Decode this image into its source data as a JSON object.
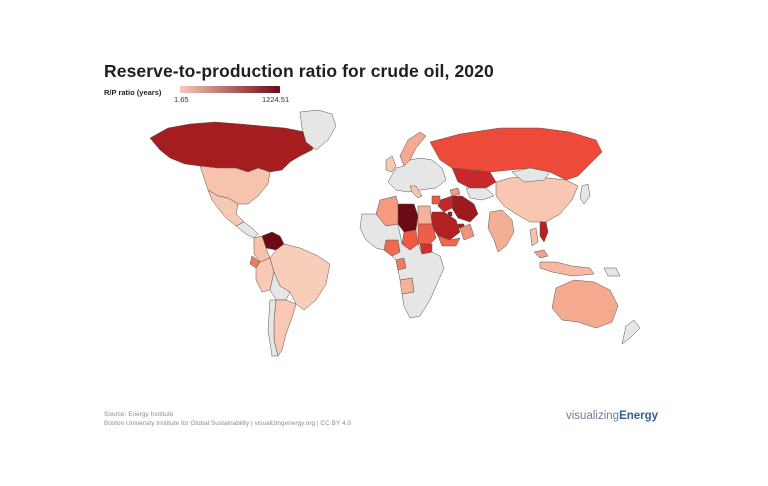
{
  "title": "Reserve-to-production ratio for crude oil, 2020",
  "legend": {
    "label": "R/P ratio (years)",
    "min": "1.65",
    "max": "1224.51",
    "color_low": "#f7c9b5",
    "color_high": "#6b0a13"
  },
  "colors": {
    "no_data": "#e6e6e6",
    "border": "#555555"
  },
  "footer": {
    "source": "Source: Energy Institute",
    "credit": "Boston University Institute for Global Sustainability | visualizingenergy.org | CC BY 4.0",
    "brand_light": "visualizing",
    "brand_bold": "Energy"
  },
  "countries": [
    {
      "name": "Canada",
      "fill": "#a51d1f"
    },
    {
      "name": "Greenland",
      "fill": "#e6e6e6"
    },
    {
      "name": "United States",
      "fill": "#f8c3ad"
    },
    {
      "name": "Mexico",
      "fill": "#f7c9b5"
    },
    {
      "name": "Central America",
      "fill": "#e6e6e6"
    },
    {
      "name": "Venezuela",
      "fill": "#6b0a13"
    },
    {
      "name": "Colombia",
      "fill": "#f6c2ab"
    },
    {
      "name": "Ecuador",
      "fill": "#ee7a5c"
    },
    {
      "name": "Peru",
      "fill": "#f8c9b4"
    },
    {
      "name": "Brazil",
      "fill": "#f8cdb9"
    },
    {
      "name": "Bolivia",
      "fill": "#e6e6e6"
    },
    {
      "name": "Argentina",
      "fill": "#f8c8b3"
    },
    {
      "name": "Chile",
      "fill": "#e6e6e6"
    },
    {
      "name": "Norway",
      "fill": "#f4a990"
    },
    {
      "name": "United Kingdom",
      "fill": "#f8c8b3"
    },
    {
      "name": "Europe",
      "fill": "#e6e6e6"
    },
    {
      "name": "Italy",
      "fill": "#f7c3ac"
    },
    {
      "name": "Russia",
      "fill": "#ee4a3a"
    },
    {
      "name": "Kazakhstan",
      "fill": "#c7282b"
    },
    {
      "name": "Turkmenistan/Uzbekistan",
      "fill": "#e6e6e6"
    },
    {
      "name": "Azerbaijan",
      "fill": "#f29a7e"
    },
    {
      "name": "Iran",
      "fill": "#9e1a1e"
    },
    {
      "name": "Iraq",
      "fill": "#c0262a"
    },
    {
      "name": "Saudi Arabia",
      "fill": "#b32024"
    },
    {
      "name": "Kuwait",
      "fill": "#9b181c"
    },
    {
      "name": "UAE",
      "fill": "#a51c1f"
    },
    {
      "name": "Oman",
      "fill": "#f19377"
    },
    {
      "name": "Yemen",
      "fill": "#ed6a50"
    },
    {
      "name": "Syria",
      "fill": "#ea5a46"
    },
    {
      "name": "Algeria",
      "fill": "#f39a80"
    },
    {
      "name": "Libya",
      "fill": "#6b0a13"
    },
    {
      "name": "Egypt",
      "fill": "#f6b39c"
    },
    {
      "name": "Chad",
      "fill": "#ee5a44"
    },
    {
      "name": "Sudan",
      "fill": "#ee5f49"
    },
    {
      "name": "South Sudan",
      "fill": "#d2302c"
    },
    {
      "name": "Nigeria",
      "fill": "#ee6a51"
    },
    {
      "name": "Gabon/Congo",
      "fill": "#ef7b60"
    },
    {
      "name": "Angola",
      "fill": "#f5b29a"
    },
    {
      "name": "Africa (rest)",
      "fill": "#e6e6e6"
    },
    {
      "name": "India",
      "fill": "#f5ae96"
    },
    {
      "name": "China",
      "fill": "#f8c6b1"
    },
    {
      "name": "Mongolia",
      "fill": "#e6e6e6"
    },
    {
      "name": "Thailand",
      "fill": "#f6c0aa"
    },
    {
      "name": "Vietnam",
      "fill": "#b8221f"
    },
    {
      "name": "Malaysia",
      "fill": "#f3a18a"
    },
    {
      "name": "Indonesia",
      "fill": "#f6b8a3"
    },
    {
      "name": "Australia",
      "fill": "#f5a98f"
    },
    {
      "name": "Papua New Guinea",
      "fill": "#e6e6e6"
    },
    {
      "name": "New Zealand",
      "fill": "#e6e6e6"
    },
    {
      "name": "Japan",
      "fill": "#e6e6e6"
    }
  ]
}
